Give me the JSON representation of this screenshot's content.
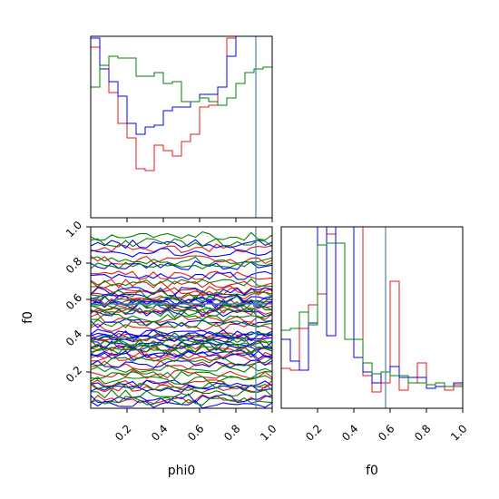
{
  "chart_data": {
    "type": "corner",
    "parameters": [
      "phi0",
      "f0"
    ],
    "truths": {
      "phi0": 0.91,
      "f0": 0.575
    },
    "truth_color": "#4682b4",
    "series_colors": [
      "#e41a1c",
      "#0000ff",
      "#008000"
    ],
    "panels": [
      {
        "id": "hist-phi0",
        "type": "step-histogram",
        "xlim": [
          0,
          1
        ],
        "ylim": [
          0,
          1
        ],
        "x_ticks": [
          0.2,
          0.4,
          0.6,
          0.8,
          1.0
        ],
        "x_tick_labels_shown": false,
        "bins": 20,
        "series": [
          {
            "color": "#e41a1c",
            "values": [
              0.94,
              0.84,
              0.69,
              0.52,
              0.44,
              0.27,
              0.26,
              0.4,
              0.37,
              0.34,
              0.42,
              0.46,
              0.61,
              0.62,
              0.72,
              0.99,
              1.0,
              1.0,
              1.0,
              1.0
            ]
          },
          {
            "color": "#0000ff",
            "values": [
              0.99,
              0.82,
              0.75,
              0.67,
              0.52,
              0.46,
              0.5,
              0.51,
              0.59,
              0.61,
              0.61,
              0.64,
              0.68,
              0.68,
              0.72,
              0.89,
              1.0,
              1.0,
              1.0,
              1.0
            ]
          },
          {
            "color": "#008000",
            "values": [
              0.72,
              0.84,
              0.89,
              0.88,
              0.88,
              0.78,
              0.78,
              0.8,
              0.74,
              0.75,
              0.64,
              0.64,
              0.66,
              0.64,
              0.62,
              0.66,
              0.74,
              0.8,
              0.82,
              0.83
            ]
          }
        ]
      },
      {
        "id": "contour-phi0-f0",
        "type": "contour",
        "xlim": [
          0,
          1
        ],
        "ylim": [
          0,
          1
        ],
        "x_ticks": [
          0.2,
          0.4,
          0.6,
          0.8,
          1.0
        ],
        "y_ticks": [
          0.2,
          0.4,
          0.6,
          0.8,
          1.0
        ],
        "x_tick_labels": [
          "0.2",
          "0.4",
          "0.6",
          "0.8",
          "1.0"
        ],
        "y_tick_labels": [
          "0.2",
          "0.4",
          "0.6",
          "0.8",
          "1.0"
        ],
        "xlabel": "phi0",
        "ylabel": "f0",
        "truth_point": [
          0.91,
          0.575
        ],
        "series": [
          {
            "color": "#e41a1c",
            "levels": [
              0.08,
              0.16,
              0.26,
              0.31,
              0.36,
              0.42,
              0.52,
              0.56,
              0.61,
              0.64,
              0.71,
              0.85
            ]
          },
          {
            "color": "#0000ff",
            "levels": [
              0.04,
              0.12,
              0.27,
              0.32,
              0.37,
              0.4,
              0.44,
              0.55,
              0.59,
              0.62,
              0.76,
              0.88
            ]
          },
          {
            "color": "#008000",
            "levels": [
              0.06,
              0.14,
              0.2,
              0.29,
              0.34,
              0.38,
              0.48,
              0.54,
              0.58,
              0.66,
              0.8,
              0.93
            ]
          }
        ]
      },
      {
        "id": "hist-f0",
        "type": "step-histogram",
        "xlim": [
          0,
          1
        ],
        "ylim": [
          0,
          1
        ],
        "x_ticks": [
          0.2,
          0.4,
          0.6,
          0.8,
          1.0
        ],
        "x_tick_labels": [
          "0.2",
          "0.4",
          "0.6",
          "0.8",
          "1.0"
        ],
        "xlabel": "f0",
        "bins": 20,
        "series": [
          {
            "color": "#e41a1c",
            "values": [
              0.22,
              0.21,
              0.44,
              0.57,
              0.63,
              0.96,
              1.0,
              1.0,
              1.0,
              0.18,
              0.09,
              0.14,
              0.7,
              0.1,
              0.14,
              0.25,
              0.11,
              0.14,
              0.1,
              0.13
            ]
          },
          {
            "color": "#0000ff",
            "values": [
              0.38,
              0.26,
              0.21,
              0.47,
              1.0,
              0.4,
              1.0,
              1.0,
              0.28,
              0.2,
              0.14,
              0.2,
              0.23,
              0.17,
              0.17,
              0.17,
              0.11,
              0.12,
              0.12,
              0.14
            ]
          },
          {
            "color": "#008000",
            "values": [
              0.43,
              0.44,
              0.53,
              0.46,
              0.9,
              0.91,
              0.91,
              0.38,
              0.38,
              0.25,
              0.19,
              0.2,
              0.18,
              0.18,
              0.14,
              0.14,
              0.13,
              0.14,
              0.12,
              0.12
            ]
          }
        ]
      }
    ]
  }
}
